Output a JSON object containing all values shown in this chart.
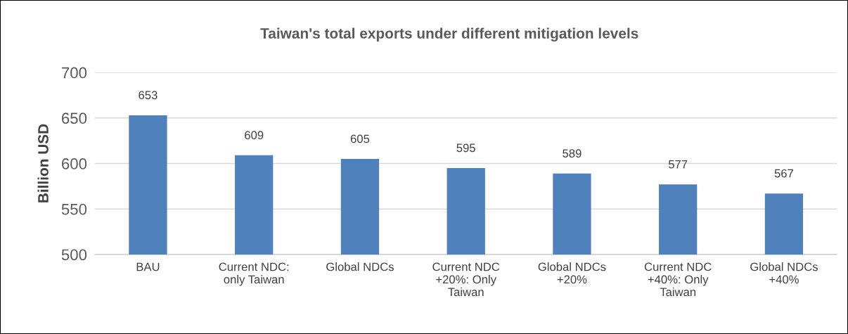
{
  "chart_data": {
    "type": "bar",
    "title": "Taiwan's total exports under different mitigation levels",
    "ylabel": "Billion USD",
    "categories": [
      "BAU",
      "Current NDC:\nonly Taiwan",
      "Global NDCs",
      "Current NDC\n+20%: Only\nTaiwan",
      "Global NDCs\n+20%",
      "Current NDC\n+40%: Only\nTaiwan",
      "Global NDCs\n+40%"
    ],
    "values": [
      653,
      609,
      605,
      595,
      589,
      577,
      567
    ],
    "color": "#4f81bd",
    "ylim": [
      500,
      700
    ],
    "yticks": [
      500,
      550,
      600,
      650,
      700
    ],
    "grid": "y",
    "data_labels": true
  }
}
